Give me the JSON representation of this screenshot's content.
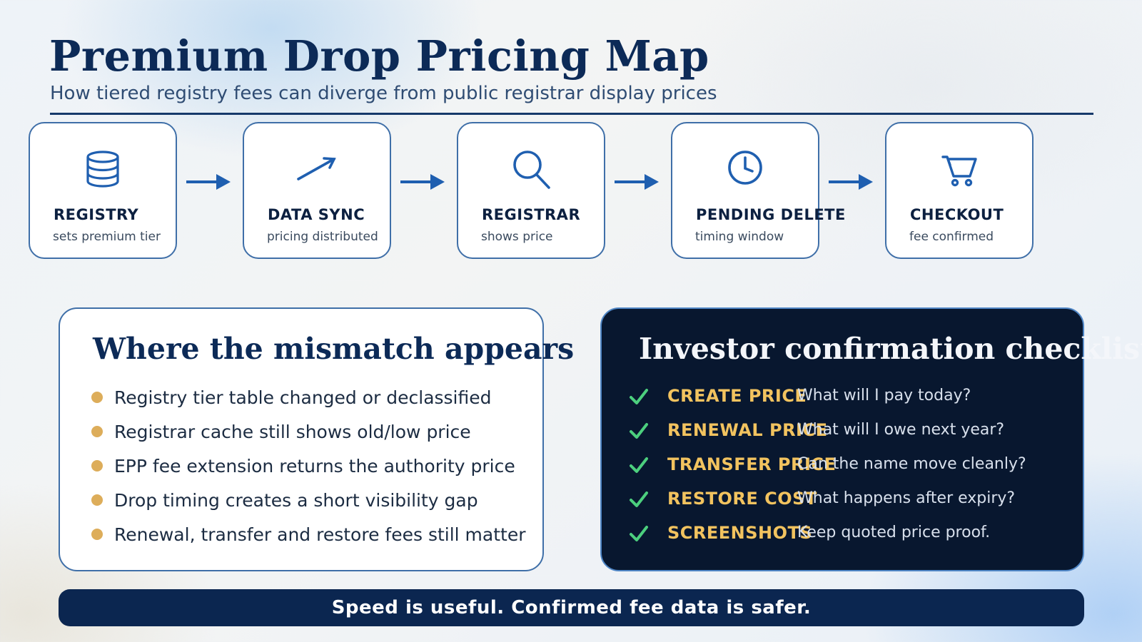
{
  "header": {
    "title": "Premium Drop Pricing Map",
    "subtitle": "How tiered registry fees can diverge from public registrar display prices"
  },
  "flow": {
    "steps": [
      {
        "label": "REGISTRY",
        "sub": "sets premium tier",
        "icon": "database-icon"
      },
      {
        "label": "DATA SYNC",
        "sub": "pricing distributed",
        "icon": "trend-arrow-icon"
      },
      {
        "label": "REGISTRAR",
        "sub": "shows price",
        "icon": "search-icon"
      },
      {
        "label": "PENDING DELETE",
        "sub": "timing window",
        "icon": "clock-icon"
      },
      {
        "label": "CHECKOUT",
        "sub": "fee confirmed",
        "icon": "cart-icon"
      }
    ],
    "connector_icon": "right-arrow-icon"
  },
  "mismatch": {
    "heading": "Where the mismatch appears",
    "items": [
      "Registry tier table changed or declassified",
      "Registrar cache still shows old/low price",
      "EPP fee extension returns the authority price",
      "Drop timing creates a short visibility gap",
      "Renewal, transfer and restore fees still matter"
    ],
    "bullet_color": "#ddad5a"
  },
  "checklist": {
    "heading": "Investor confirmation checklist",
    "items": [
      {
        "term": "CREATE PRICE",
        "question": "What will I pay today?"
      },
      {
        "term": "RENEWAL PRICE",
        "question": "What will I owe next year?"
      },
      {
        "term": "TRANSFER PRICE",
        "question": "Can the name move cleanly?"
      },
      {
        "term": "RESTORE COST",
        "question": "What happens after expiry?"
      },
      {
        "term": "SCREENSHOTS",
        "question": "Keep quoted price proof."
      }
    ],
    "check_icon": "checkmark-icon",
    "check_color": "#4ccf7e",
    "term_color": "#f2c35f"
  },
  "footer": {
    "banner": "Speed is useful. Confirmed fee data is safer."
  },
  "colors": {
    "navy": "#0c2a57",
    "accent_blue": "#1f5fb0",
    "dark_panel": "#08172f"
  }
}
